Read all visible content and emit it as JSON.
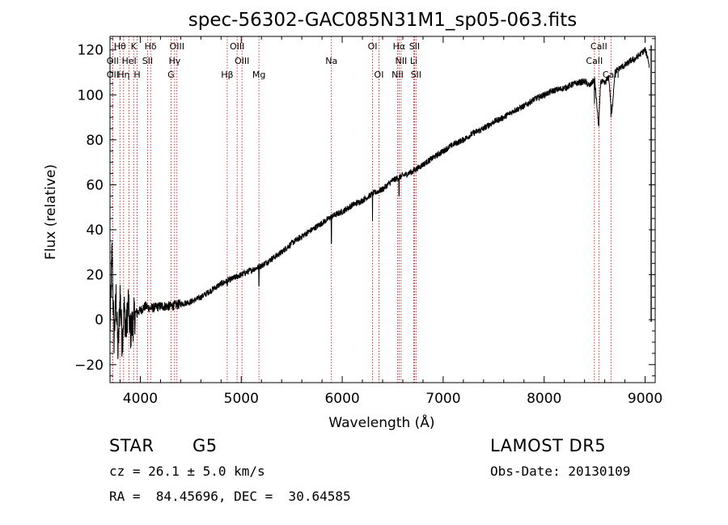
{
  "chart_data": {
    "type": "line",
    "title": "spec-56302-GAC085N31M1_sp05-063.fits",
    "xlabel": "Wavelength (Å)",
    "ylabel": "Flux (relative)",
    "xlim": [
      3700,
      9100
    ],
    "ylim": [
      -28,
      126
    ],
    "xticks": [
      4000,
      5000,
      6000,
      7000,
      8000,
      9000
    ],
    "yticks": [
      -20,
      0,
      20,
      40,
      60,
      80,
      100,
      120
    ],
    "grid": false,
    "line_color": "#000000",
    "marker_color": "#cc0000",
    "series": [
      {
        "x": [
          3700,
          3720,
          3740,
          3760,
          3780,
          3800,
          3820,
          3840,
          3860,
          3880,
          3900,
          3950,
          4000,
          4050,
          4100,
          4200,
          4300,
          4400,
          4500,
          4600,
          4700,
          4800,
          4900,
          5000,
          5100,
          5200,
          5300,
          5400,
          5500,
          5600,
          5700,
          5800,
          5900,
          6000,
          6100,
          6200,
          6300,
          6400,
          6500,
          6600,
          6700,
          6800,
          6900,
          7000,
          7100,
          7200,
          7300,
          7400,
          7500,
          7600,
          7700,
          7800,
          7900,
          8000,
          8100,
          8200,
          8300,
          8400,
          8450,
          8500,
          8540,
          8560,
          8600,
          8640,
          8670,
          8700,
          8750,
          8800,
          8850,
          8900,
          8950,
          9000,
          9030,
          9050
        ],
        "y": [
          -5,
          30,
          -8,
          10,
          -15,
          12,
          -10,
          5,
          -5,
          8,
          -6,
          3,
          4,
          6,
          5,
          6,
          6,
          7,
          8,
          10,
          13,
          16,
          18,
          20,
          22,
          24,
          27,
          30,
          34,
          37,
          40,
          43,
          46,
          48,
          51,
          53,
          56,
          58,
          62,
          64,
          66,
          69,
          72,
          75,
          78,
          80,
          83,
          85,
          88,
          90,
          93,
          95,
          98,
          100,
          102,
          103,
          105,
          106,
          104,
          107,
          86,
          106,
          105,
          108,
          91,
          110,
          112,
          113,
          115,
          116,
          118,
          120,
          116,
          110
        ],
        "dips": [
          [
            3934,
            0
          ],
          [
            3969,
            1
          ],
          [
            4861,
            15
          ],
          [
            5175,
            15
          ],
          [
            5893,
            34
          ],
          [
            6300,
            44
          ],
          [
            6563,
            55
          ],
          [
            8498,
            96
          ],
          [
            8542,
            86
          ],
          [
            8662,
            90
          ]
        ]
      }
    ],
    "spectral_lines": [
      {
        "label": "Hθ",
        "x": 3798,
        "row": 0
      },
      {
        "label": "K",
        "x": 3934,
        "row": 0
      },
      {
        "label": "Hδ",
        "x": 4102,
        "row": 0
      },
      {
        "label": "OIII",
        "x": 4363,
        "row": 0
      },
      {
        "label": "OIII",
        "x": 4959,
        "row": 0
      },
      {
        "label": "OI",
        "x": 6300,
        "row": 0
      },
      {
        "label": "Hα",
        "x": 6563,
        "row": 0
      },
      {
        "label": "SII",
        "x": 6716,
        "row": 0
      },
      {
        "label": "CaII",
        "x": 8542,
        "row": 0
      },
      {
        "label": "OII",
        "x": 3727,
        "row": 1
      },
      {
        "label": "HeI",
        "x": 3889,
        "row": 1
      },
      {
        "label": "SII",
        "x": 4072,
        "row": 1
      },
      {
        "label": "Hγ",
        "x": 4340,
        "row": 1
      },
      {
        "label": "OIII",
        "x": 5007,
        "row": 1
      },
      {
        "label": "Na",
        "x": 5893,
        "row": 1
      },
      {
        "label": "NII",
        "x": 6583,
        "row": 1
      },
      {
        "label": "Li",
        "x": 6708,
        "row": 1
      },
      {
        "label": "CaII",
        "x": 8498,
        "row": 1
      },
      {
        "label": "OII",
        "x": 3727,
        "row": 2
      },
      {
        "label": "Hη",
        "x": 3835,
        "row": 2
      },
      {
        "label": "H",
        "x": 3969,
        "row": 2
      },
      {
        "label": "G",
        "x": 4304,
        "row": 2
      },
      {
        "label": "Hβ",
        "x": 4861,
        "row": 2
      },
      {
        "label": "Mg",
        "x": 5175,
        "row": 2
      },
      {
        "label": "OI",
        "x": 6364,
        "row": 2
      },
      {
        "label": "NII",
        "x": 6548,
        "row": 2
      },
      {
        "label": "SII",
        "x": 6731,
        "row": 2
      },
      {
        "label": "CaII",
        "x": 8662,
        "row": 2
      }
    ]
  },
  "info": {
    "class": "STAR",
    "subclass": "G5",
    "survey": "LAMOST DR5",
    "redshift": "cz = 26.1 ± 5.0 km/s",
    "obs_date": "Obs-Date: 20130109",
    "coords": "RA =  84.45696, DEC =  30.64585"
  }
}
